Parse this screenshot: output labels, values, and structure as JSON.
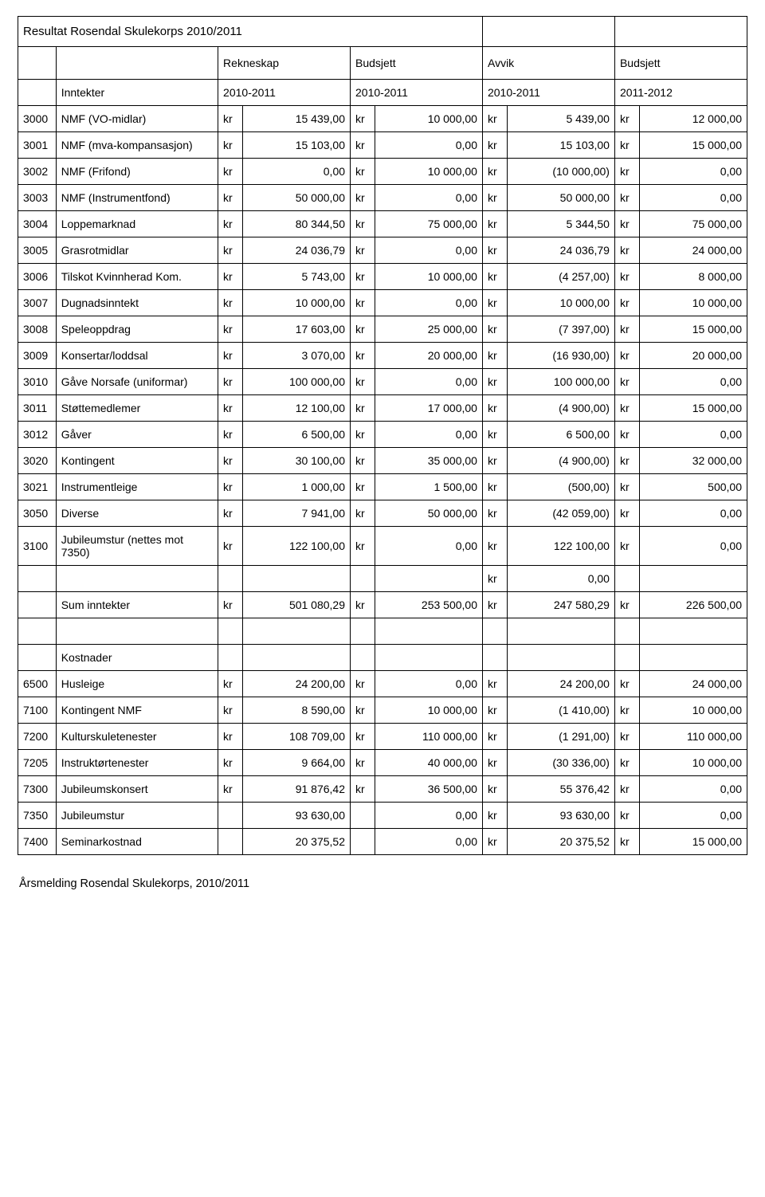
{
  "title": "Resultat Rosendal Skulekorps 2010/2011",
  "headers": {
    "rekneskap": "Rekneskap",
    "budsjett1": "Budsjett",
    "avvik": "Avvik",
    "budsjett2": "Budsjett"
  },
  "subheaders": {
    "inntekter": "Inntekter",
    "y1": "2010-2011",
    "y2": "2010-2011",
    "y3": "2010-2011",
    "y4": "2011-2012"
  },
  "currency": "kr",
  "rows": [
    {
      "code": "3000",
      "desc": "NMF (VO-midlar)",
      "v1": "15 439,00",
      "v2": "10 000,00",
      "v3": "5 439,00",
      "v4": "12 000,00"
    },
    {
      "code": "3001",
      "desc": "NMF (mva-kompansasjon)",
      "v1": "15 103,00",
      "v2": "0,00",
      "v3": "15 103,00",
      "v4": "15 000,00"
    },
    {
      "code": "3002",
      "desc": "NMF (Frifond)",
      "v1": "0,00",
      "v2": "10 000,00",
      "v3": "(10 000,00)",
      "v4": "0,00"
    },
    {
      "code": "3003",
      "desc": "NMF (Instrumentfond)",
      "v1": "50 000,00",
      "v2": "0,00",
      "v3": "50 000,00",
      "v4": "0,00"
    },
    {
      "code": "3004",
      "desc": "Loppemarknad",
      "v1": "80 344,50",
      "v2": "75 000,00",
      "v3": "5 344,50",
      "v4": "75 000,00"
    },
    {
      "code": "3005",
      "desc": "Grasrotmidlar",
      "v1": "24 036,79",
      "v2": "0,00",
      "v3": "24 036,79",
      "v4": "24 000,00"
    },
    {
      "code": "3006",
      "desc": "Tilskot Kvinnherad Kom.",
      "v1": "5 743,00",
      "v2": "10 000,00",
      "v3": "(4 257,00)",
      "v4": "8 000,00"
    },
    {
      "code": "3007",
      "desc": "Dugnadsinntekt",
      "v1": "10 000,00",
      "v2": "0,00",
      "v3": "10 000,00",
      "v4": "10 000,00"
    },
    {
      "code": "3008",
      "desc": "Speleoppdrag",
      "v1": "17 603,00",
      "v2": "25 000,00",
      "v3": "(7 397,00)",
      "v4": "15 000,00"
    },
    {
      "code": "3009",
      "desc": "Konsertar/loddsal",
      "v1": "3 070,00",
      "v2": "20 000,00",
      "v3": "(16 930,00)",
      "v4": "20 000,00"
    },
    {
      "code": "3010",
      "desc": "Gåve Norsafe (uniformar)",
      "v1": "100 000,00",
      "v2": "0,00",
      "v3": "100 000,00",
      "v4": "0,00"
    },
    {
      "code": "3011",
      "desc": "Støttemedlemer",
      "v1": "12 100,00",
      "v2": "17 000,00",
      "v3": "(4 900,00)",
      "v4": "15 000,00"
    },
    {
      "code": "3012",
      "desc": "Gåver",
      "v1": "6 500,00",
      "v2": "0,00",
      "v3": "6 500,00",
      "v4": "0,00"
    },
    {
      "code": "3020",
      "desc": "Kontingent",
      "v1": "30 100,00",
      "v2": "35 000,00",
      "v3": "(4 900,00)",
      "v4": "32 000,00"
    },
    {
      "code": "3021",
      "desc": "Instrumentleige",
      "v1": "1 000,00",
      "v2": "1 500,00",
      "v3": "(500,00)",
      "v4": "500,00"
    },
    {
      "code": "3050",
      "desc": "Diverse",
      "v1": "7 941,00",
      "v2": "50 000,00",
      "v3": "(42 059,00)",
      "v4": "0,00"
    },
    {
      "code": "3100",
      "desc": "Jubileumstur (nettes mot 7350)",
      "v1": "122 100,00",
      "v2": "0,00",
      "v3": "122 100,00",
      "v4": "0,00",
      "wrap": true
    }
  ],
  "blank_row_v3": "0,00",
  "sum_row": {
    "desc": "Sum inntekter",
    "v1": "501 080,29",
    "v2": "253 500,00",
    "v3": "247 580,29",
    "v4": "226 500,00"
  },
  "kostnader_label": "Kostnader",
  "cost_rows": [
    {
      "code": "6500",
      "desc": "Husleige",
      "k1": "kr",
      "v1": "24 200,00",
      "k2": "kr",
      "v2": "0,00",
      "v3": "24 200,00",
      "v4": "24 000,00"
    },
    {
      "code": "7100",
      "desc": "Kontingent NMF",
      "k1": "kr",
      "v1": "8 590,00",
      "k2": "kr",
      "v2": "10 000,00",
      "v3": "(1 410,00)",
      "v4": "10 000,00"
    },
    {
      "code": "7200",
      "desc": "Kulturskuletenester",
      "k1": "kr",
      "v1": "108 709,00",
      "k2": "kr",
      "v2": "110 000,00",
      "v3": "(1 291,00)",
      "v4": "110 000,00"
    },
    {
      "code": "7205",
      "desc": "Instruktørtenester",
      "k1": "kr",
      "v1": "9 664,00",
      "k2": "kr",
      "v2": "40 000,00",
      "v3": "(30 336,00)",
      "v4": "10 000,00"
    },
    {
      "code": "7300",
      "desc": "Jubileumskonsert",
      "k1": "kr",
      "v1": "91 876,42",
      "k2": "kr",
      "v2": "36 500,00",
      "v3": "55 376,42",
      "v4": "0,00"
    },
    {
      "code": "7350",
      "desc": "Jubileumstur",
      "k1": "",
      "v1": "93 630,00",
      "k2": "",
      "v2": "0,00",
      "v3": "93 630,00",
      "v4": "0,00"
    },
    {
      "code": "7400",
      "desc": "Seminarkostnad",
      "k1": "",
      "v1": "20 375,52",
      "k2": "",
      "v2": "0,00",
      "v3": "20 375,52",
      "v4": "15 000,00"
    }
  ],
  "footer": "Årsmelding Rosendal Skulekorps, 2010/2011"
}
